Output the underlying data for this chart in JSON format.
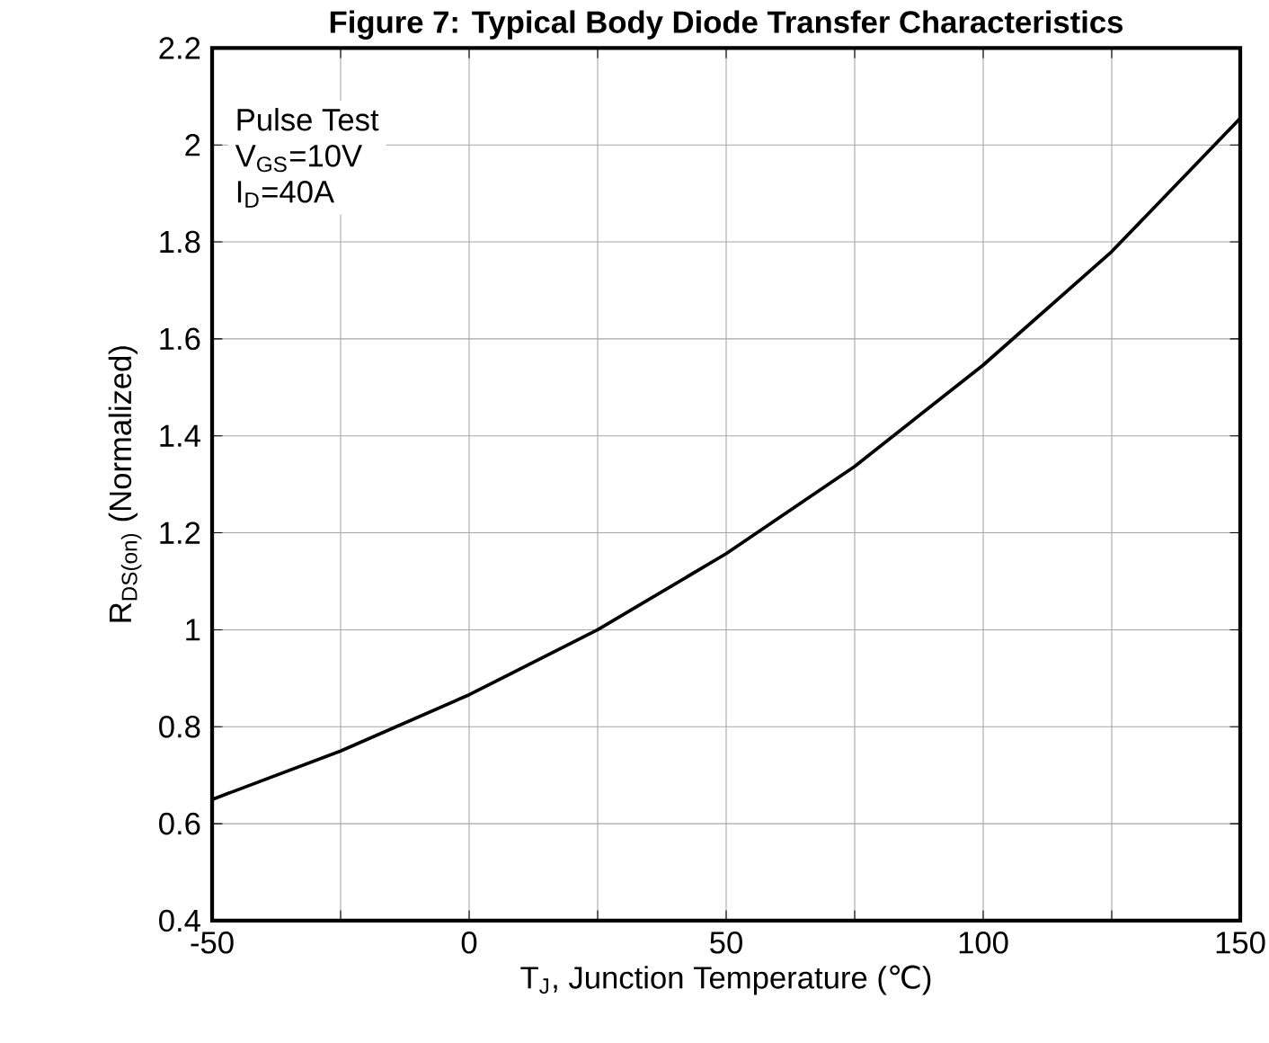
{
  "chart_data": {
    "type": "line",
    "title": "Figure 7: Typical Body Diode Transfer Characteristics",
    "xlabel": "T$_{J}$, Junction Temperature (℃)",
    "ylabel": "R$_{DS(on)}$ (Normalized)",
    "annotations": [
      "Pulse Test",
      "V$_{GS}$=10V",
      "I$_{D}$=40A"
    ],
    "x": [
      -50,
      -25,
      0,
      25,
      50,
      75,
      100,
      125,
      150
    ],
    "series": [
      {
        "color": "#000000",
        "values": [
          0.65,
          0.75,
          0.866,
          1.0,
          1.157,
          1.337,
          1.546,
          1.78,
          2.055
        ]
      }
    ],
    "xlim": [
      -50,
      150
    ],
    "xticks": [
      -50,
      {
        "value": -25,
        "label": null
      },
      0,
      {
        "value": 25,
        "label": null
      },
      50,
      {
        "value": 75,
        "label": null
      },
      100,
      {
        "value": 125,
        "label": null
      },
      150
    ],
    "ylim": [
      0.4,
      2.2
    ],
    "yticks": [
      0.4,
      0.6,
      0.8,
      1,
      1.2,
      1.4,
      1.6,
      1.8,
      2,
      2.2
    ],
    "grid": true,
    "marker": "none",
    "line_style": "solid"
  }
}
